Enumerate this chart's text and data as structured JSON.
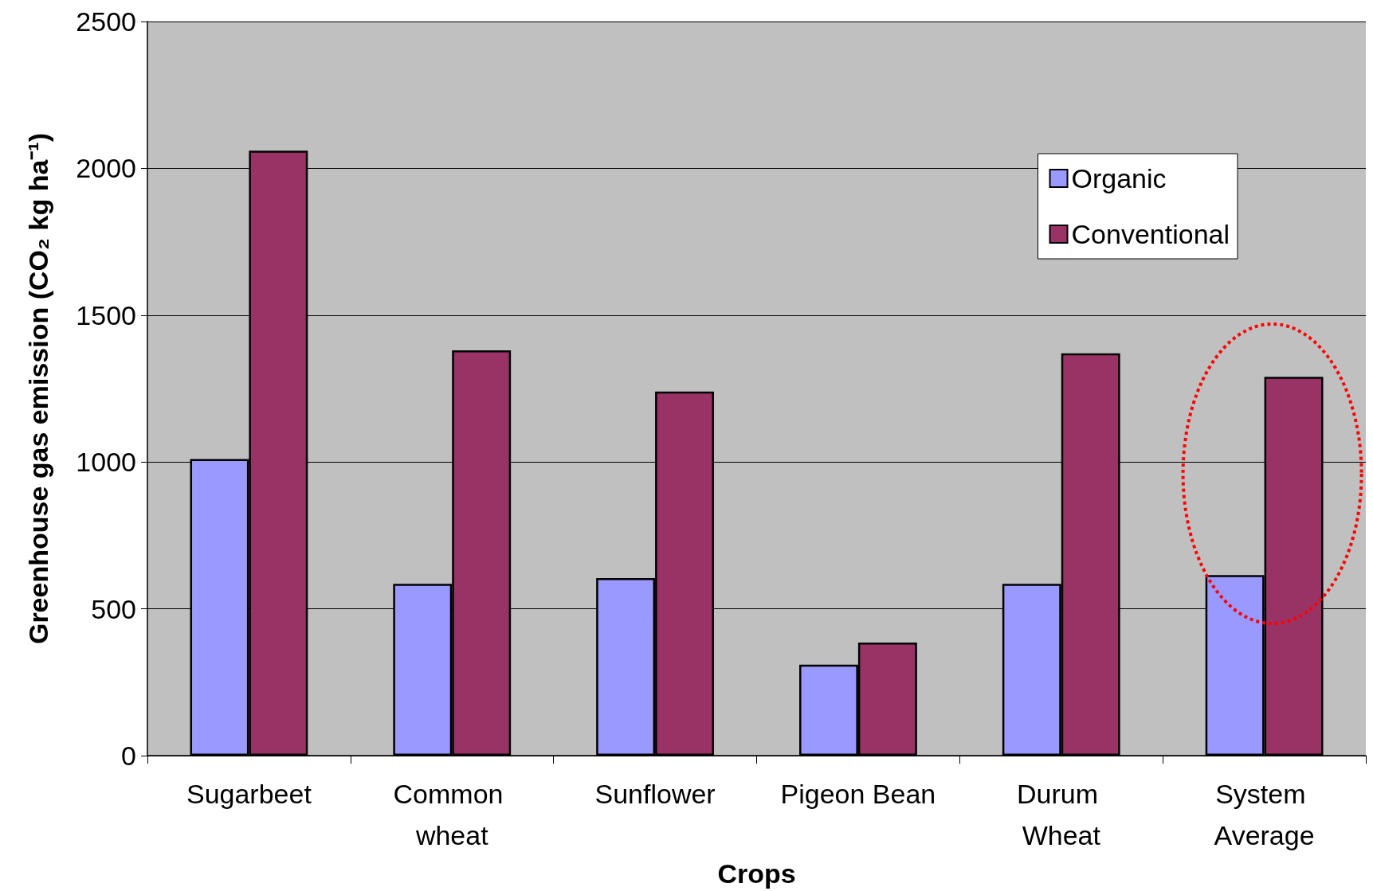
{
  "chart_data": {
    "type": "bar",
    "xlabel": "Crops",
    "ylabel": "Greenhouse gas emission (CO₂ kg ha⁻¹)",
    "categories": [
      "Sugarbeet",
      "Common wheat",
      "Sunflower",
      "Pigeon Bean",
      "Durum Wheat",
      "System Average"
    ],
    "series": [
      {
        "name": "Organic",
        "color": "#9999ff",
        "values": [
          1010,
          585,
          605,
          310,
          585,
          615
        ]
      },
      {
        "name": "Conventional",
        "color": "#993366",
        "values": [
          2060,
          1380,
          1240,
          385,
          1370,
          1290
        ]
      }
    ],
    "ylim": [
      0,
      2500
    ],
    "yticks": [
      0,
      500,
      1000,
      1500,
      2000,
      2500
    ],
    "grid": "y",
    "legend": "top right"
  }
}
